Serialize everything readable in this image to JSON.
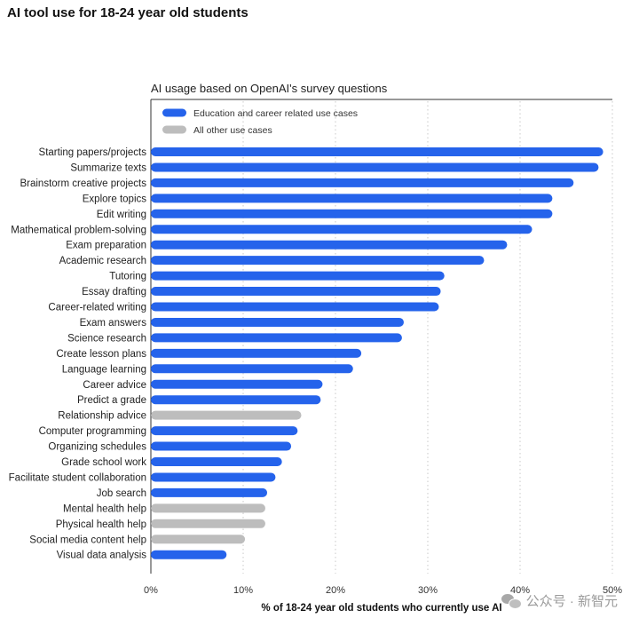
{
  "page": {
    "title": "AI tool use for 18-24 year old students"
  },
  "watermark": {
    "text": "公众号 · 新智元",
    "icon": "wechat-icon"
  },
  "chart_data": {
    "type": "bar",
    "orientation": "horizontal",
    "title": "AI usage based on OpenAI's survey questions",
    "xlabel": "% of 18-24 year old students who currently use AI",
    "ylabel": "",
    "xlim": [
      0,
      50
    ],
    "x_ticks": [
      "0%",
      "10%",
      "20%",
      "30%",
      "40%",
      "50%"
    ],
    "grid": "vertical-dotted",
    "legend_position": "top-left",
    "legend": [
      {
        "key": "education",
        "label": "Education and career related use cases",
        "color": "#2563eb"
      },
      {
        "key": "other",
        "label": "All other use cases",
        "color": "#bdbdbd"
      }
    ],
    "categories": [
      "Starting papers/projects",
      "Summarize texts",
      "Brainstorm creative projects",
      "Explore topics",
      "Edit writing",
      "Mathematical problem-solving",
      "Exam preparation",
      "Academic research",
      "Tutoring",
      "Essay drafting",
      "Career-related writing",
      "Exam answers",
      "Science research",
      "Create lesson plans",
      "Language learning",
      "Career advice",
      "Predict a grade",
      "Relationship advice",
      "Computer programming",
      "Organizing schedules",
      "Grade school work",
      "Facilitate student collaboration",
      "Job search",
      "Mental health help",
      "Physical health help",
      "Social media content help",
      "Visual data analysis"
    ],
    "values": [
      49,
      48.5,
      45.8,
      43.5,
      43.5,
      41.3,
      38.6,
      36.1,
      31.8,
      31.4,
      31.2,
      27.4,
      27.2,
      22.8,
      21.9,
      18.6,
      18.4,
      16.3,
      15.9,
      15.2,
      14.2,
      13.5,
      12.6,
      12.4,
      12.4,
      10.2,
      8.2
    ],
    "groups": [
      "education",
      "education",
      "education",
      "education",
      "education",
      "education",
      "education",
      "education",
      "education",
      "education",
      "education",
      "education",
      "education",
      "education",
      "education",
      "education",
      "education",
      "other",
      "education",
      "education",
      "education",
      "education",
      "education",
      "other",
      "other",
      "other",
      "education"
    ]
  }
}
